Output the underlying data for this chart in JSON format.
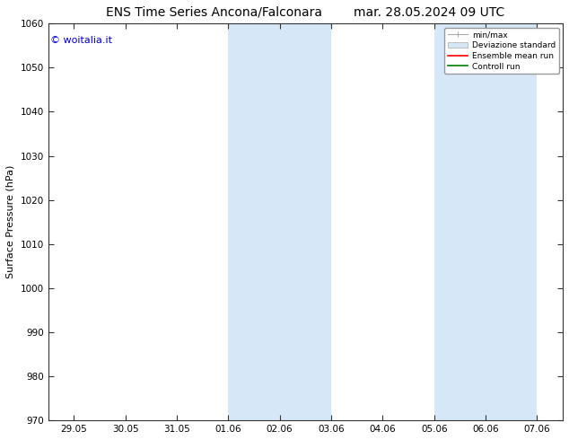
{
  "title_left": "ENS Time Series Ancona/Falconara",
  "title_right": "mar. 28.05.2024 09 UTC",
  "ylabel": "Surface Pressure (hPa)",
  "ylim": [
    970,
    1060
  ],
  "yticks": [
    970,
    980,
    990,
    1000,
    1010,
    1020,
    1030,
    1040,
    1050,
    1060
  ],
  "xtick_labels": [
    "29.05",
    "30.05",
    "31.05",
    "01.06",
    "02.06",
    "03.06",
    "04.06",
    "05.06",
    "06.06",
    "07.06"
  ],
  "xtick_positions": [
    0,
    1,
    2,
    3,
    4,
    5,
    6,
    7,
    8,
    9
  ],
  "xlim": [
    -0.5,
    9.5
  ],
  "shaded_regions": [
    {
      "xmin": 3,
      "xmax": 5,
      "color": "#d6e8f7"
    },
    {
      "xmin": 7,
      "xmax": 9,
      "color": "#d6e8f7"
    }
  ],
  "watermark": "© woitalia.it",
  "watermark_color": "#0000cc",
  "legend_items": [
    {
      "label": "min/max",
      "color": "#aaaaaa",
      "lw": 1
    },
    {
      "label": "Deviazione standard",
      "color": "#d6e8f7",
      "lw": 6
    },
    {
      "label": "Ensemble mean run",
      "color": "red",
      "lw": 1.2
    },
    {
      "label": "Controll run",
      "color": "green",
      "lw": 1.2
    }
  ],
  "bg_color": "#ffffff",
  "title_fontsize": 10,
  "axis_fontsize": 8,
  "tick_fontsize": 7.5,
  "watermark_fontsize": 8
}
